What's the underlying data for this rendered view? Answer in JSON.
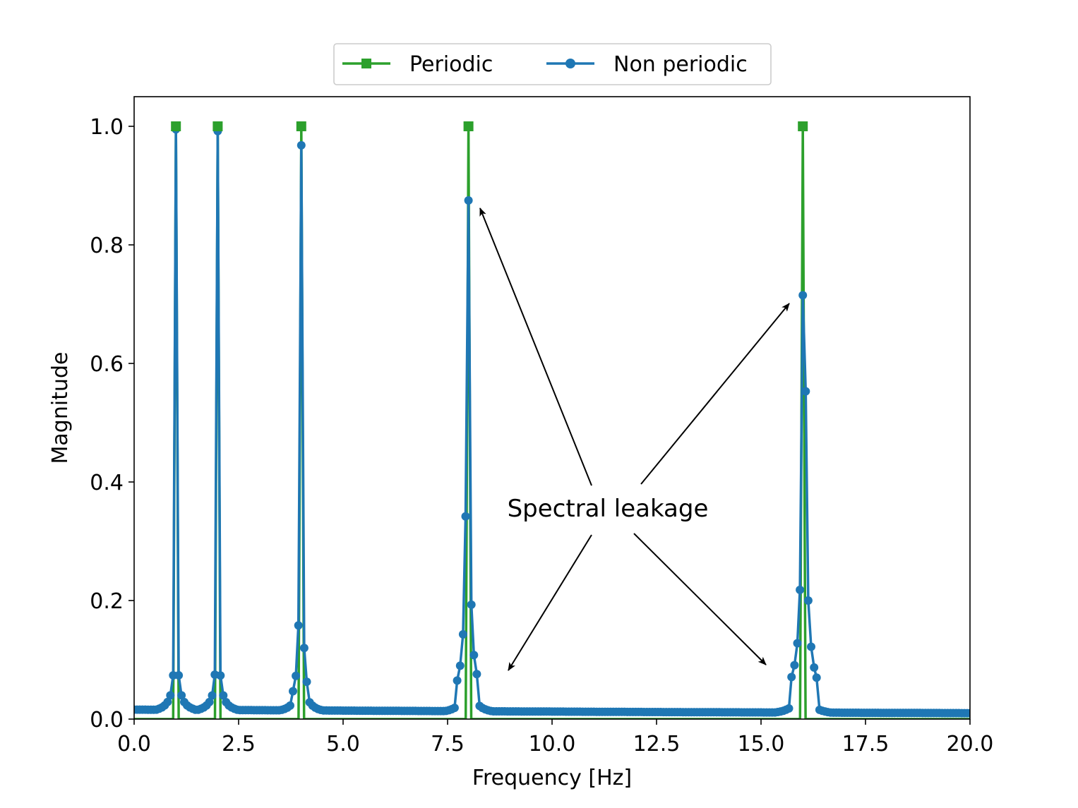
{
  "chart_data": {
    "type": "line",
    "title": "",
    "xlabel": "Frequency [Hz]",
    "ylabel": "Magnitude",
    "xlim": [
      0.0,
      20.0
    ],
    "ylim": [
      0.0,
      1.05
    ],
    "xticks": [
      "0.0",
      "2.5",
      "5.0",
      "7.5",
      "10.0",
      "12.5",
      "15.0",
      "17.5",
      "20.0"
    ],
    "yticks": [
      "0.0",
      "0.2",
      "0.4",
      "0.6",
      "0.8",
      "1.0"
    ],
    "grid": false,
    "legend": {
      "placement": "top-center, above axes",
      "columns": 2
    },
    "annotation": {
      "text": "Spectral leakage",
      "x": 11.5,
      "y": 0.36,
      "arrow_targets": [
        [
          8.05,
          0.87
        ],
        [
          15.7,
          0.71
        ],
        [
          8.85,
          0.08
        ],
        [
          15.15,
          0.09
        ]
      ]
    },
    "series": [
      {
        "name": "Periodic",
        "color": "#2ca02c",
        "marker": "square",
        "peaks": [
          {
            "x": 1.0,
            "y": 1.0
          },
          {
            "x": 2.0,
            "y": 1.0
          },
          {
            "x": 4.0,
            "y": 1.0
          },
          {
            "x": 8.0,
            "y": 1.0
          },
          {
            "x": 16.0,
            "y": 1.0
          }
        ],
        "baseline": 0.0
      },
      {
        "name": "Non periodic",
        "color": "#1f77b4",
        "marker": "circle",
        "peaks": [
          {
            "x": 1.0,
            "y": 0.995
          },
          {
            "x": 2.0,
            "y": 0.992
          },
          {
            "x": 4.0,
            "y": 0.968
          },
          {
            "x": 8.0,
            "y": 0.875
          },
          {
            "x": 16.0,
            "y": 0.715
          }
        ],
        "labeled_points": [
          {
            "x": 0.93,
            "y": 0.04
          },
          {
            "x": 1.07,
            "y": 0.03
          },
          {
            "x": 1.93,
            "y": 0.075
          },
          {
            "x": 2.07,
            "y": 0.065
          },
          {
            "x": 1.87,
            "y": 0.037
          },
          {
            "x": 2.13,
            "y": 0.033
          },
          {
            "x": 3.93,
            "y": 0.158
          },
          {
            "x": 4.07,
            "y": 0.12
          },
          {
            "x": 3.87,
            "y": 0.073
          },
          {
            "x": 4.13,
            "y": 0.063
          },
          {
            "x": 3.8,
            "y": 0.047
          },
          {
            "x": 7.93,
            "y": 0.342
          },
          {
            "x": 8.07,
            "y": 0.193
          },
          {
            "x": 7.87,
            "y": 0.143
          },
          {
            "x": 8.13,
            "y": 0.108
          },
          {
            "x": 7.8,
            "y": 0.09
          },
          {
            "x": 8.2,
            "y": 0.076
          },
          {
            "x": 7.73,
            "y": 0.065
          },
          {
            "x": 15.93,
            "y": 0.218
          },
          {
            "x": 16.07,
            "y": 0.553
          },
          {
            "x": 16.13,
            "y": 0.2
          },
          {
            "x": 15.87,
            "y": 0.128
          },
          {
            "x": 16.2,
            "y": 0.122
          },
          {
            "x": 15.8,
            "y": 0.091
          },
          {
            "x": 16.27,
            "y": 0.087
          },
          {
            "x": 15.73,
            "y": 0.071
          },
          {
            "x": 16.33,
            "y": 0.07
          }
        ],
        "floor": {
          "x0": 0.0,
          "y0": 0.016,
          "xmid": 12.0,
          "ymid": 0.012,
          "x1": 20.0,
          "y1": 0.01
        }
      }
    ]
  }
}
